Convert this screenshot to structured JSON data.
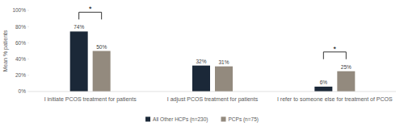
{
  "chart_data": {
    "type": "bar",
    "ylabel": "Mean % patients",
    "categories": [
      "I initiate PCOS treatment for patients",
      "I adjust PCOS treatment for patients",
      "I refer to someone else for treatment of PCOS"
    ],
    "series": [
      {
        "name": "All Other HCPs (n=230)",
        "color": "#1b2838",
        "values": [
          74,
          32,
          6
        ],
        "value_labels": [
          "74%",
          "32%",
          "6%"
        ]
      },
      {
        "name": "PCPs (n=75)",
        "color": "#938a7e",
        "values": [
          50,
          31,
          25
        ],
        "value_labels": [
          "50%",
          "31%",
          "25%"
        ]
      }
    ],
    "ylim": [
      0,
      100
    ],
    "yticks": [
      {
        "value": 0,
        "label": "0%"
      },
      {
        "value": 20,
        "label": "20%"
      },
      {
        "value": 40,
        "label": "40%"
      },
      {
        "value": 60,
        "label": "60%"
      },
      {
        "value": 80,
        "label": "80%"
      },
      {
        "value": 100,
        "label": "100%"
      }
    ],
    "annotations": [
      {
        "label": "*",
        "category": "I initiate PCOS treatment for patients"
      },
      {
        "label": "*",
        "category": "I refer to someone else for treatment of PCOS"
      }
    ],
    "grid": false,
    "data_labels": true,
    "legend": "bottom"
  }
}
